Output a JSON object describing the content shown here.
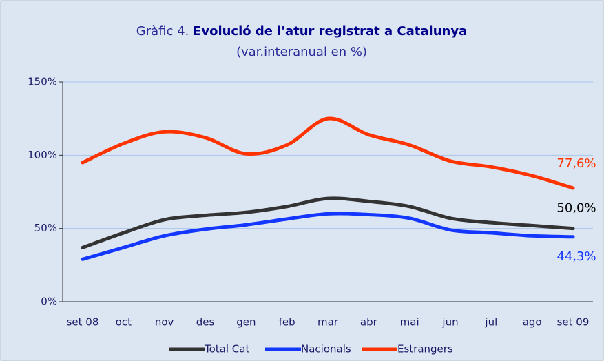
{
  "chart_data": {
    "type": "line",
    "title_prefix": "Gràfic 4.",
    "title": "Evolució de l'atur registrat a Catalunya",
    "subtitle": "(var.interanual en %)",
    "categories": [
      "set 08",
      "oct",
      "nov",
      "des",
      "gen",
      "feb",
      "mar",
      "abr",
      "mai",
      "jun",
      "jul",
      "ago",
      "set 09"
    ],
    "series": [
      {
        "name": "Total Cat",
        "color": "#333333",
        "values": [
          37,
          47,
          56,
          59,
          61,
          65,
          70.5,
          68.5,
          65,
          57,
          54,
          52,
          50
        ],
        "value_labels": [
          null,
          null,
          null,
          null,
          null,
          null,
          null,
          null,
          null,
          null,
          null,
          null,
          "50,0%"
        ]
      },
      {
        "name": "Nacionals",
        "color": "#1437ff",
        "values": [
          29,
          37,
          45,
          49.5,
          52.5,
          56.5,
          60,
          59.5,
          57,
          49,
          47,
          45,
          44.3
        ],
        "value_labels": [
          null,
          null,
          null,
          null,
          null,
          null,
          null,
          null,
          null,
          null,
          null,
          null,
          "44,3%"
        ]
      },
      {
        "name": "Estrangers",
        "color": "#ff3300",
        "values": [
          95,
          108,
          116,
          112,
          101,
          107,
          125,
          114,
          107,
          96,
          92,
          86,
          77.6
        ],
        "value_labels": [
          null,
          null,
          null,
          null,
          null,
          null,
          null,
          null,
          null,
          null,
          null,
          null,
          "77,6%"
        ]
      }
    ],
    "ylim": [
      0,
      150
    ],
    "yticks": [
      {
        "value": 0,
        "label": "0%"
      },
      {
        "value": 50,
        "label": "50%"
      },
      {
        "value": 100,
        "label": "100%"
      },
      {
        "value": 150,
        "label": "150%"
      }
    ],
    "grid": true,
    "legend": "bottom"
  }
}
